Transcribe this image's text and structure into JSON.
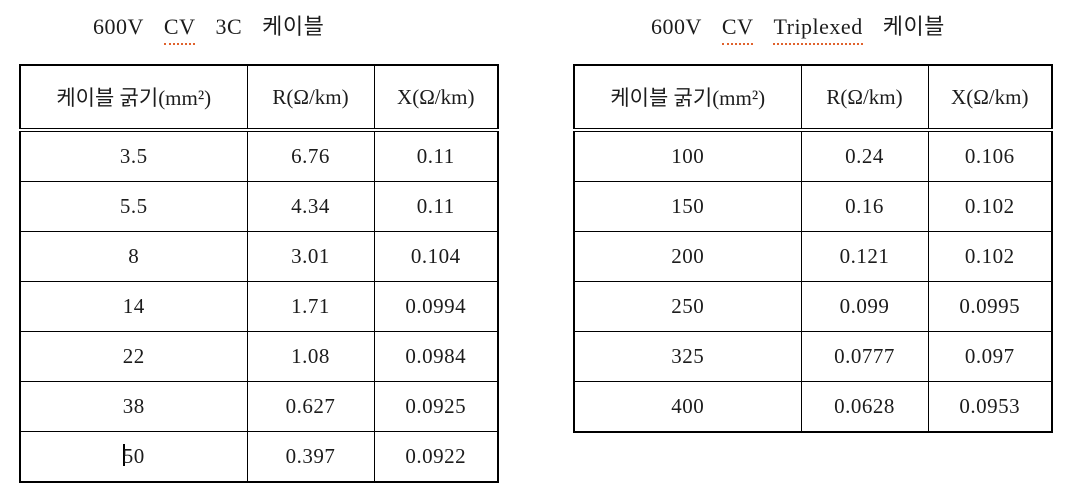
{
  "page": {
    "background": "#ffffff",
    "text_color": "#1c1c1c",
    "border_color": "#000000",
    "spellcheck_underline_color": "#e0622d"
  },
  "left_panel": {
    "title": "600V CV 3C 케이블",
    "title_words": [
      "600V",
      "CV",
      "3C",
      "케이블"
    ],
    "headers": [
      "케이블 굵기(mm²)",
      "R(Ω/km)",
      "X(Ω/km)"
    ],
    "rows": [
      [
        "3.5",
        "6.76",
        "0.11"
      ],
      [
        "5.5",
        "4.34",
        "0.11"
      ],
      [
        "8",
        "3.01",
        "0.104"
      ],
      [
        "14",
        "1.71",
        "0.0994"
      ],
      [
        "22",
        "1.08",
        "0.0984"
      ],
      [
        "38",
        "0.627",
        "0.0925"
      ],
      [
        "50",
        "0.397",
        "0.0922"
      ]
    ]
  },
  "right_panel": {
    "title": "600V CV Triplexed 케이블",
    "title_words": [
      "600V",
      "CV",
      "Triplexed",
      "케이블"
    ],
    "headers": [
      "케이블 굵기(mm²)",
      "R(Ω/km)",
      "X(Ω/km)"
    ],
    "rows": [
      [
        "100",
        "0.24",
        "0.106"
      ],
      [
        "150",
        "0.16",
        "0.102"
      ],
      [
        "200",
        "0.121",
        "0.102"
      ],
      [
        "250",
        "0.099",
        "0.0995"
      ],
      [
        "325",
        "0.0777",
        "0.097"
      ],
      [
        "400",
        "0.0628",
        "0.0953"
      ]
    ]
  }
}
